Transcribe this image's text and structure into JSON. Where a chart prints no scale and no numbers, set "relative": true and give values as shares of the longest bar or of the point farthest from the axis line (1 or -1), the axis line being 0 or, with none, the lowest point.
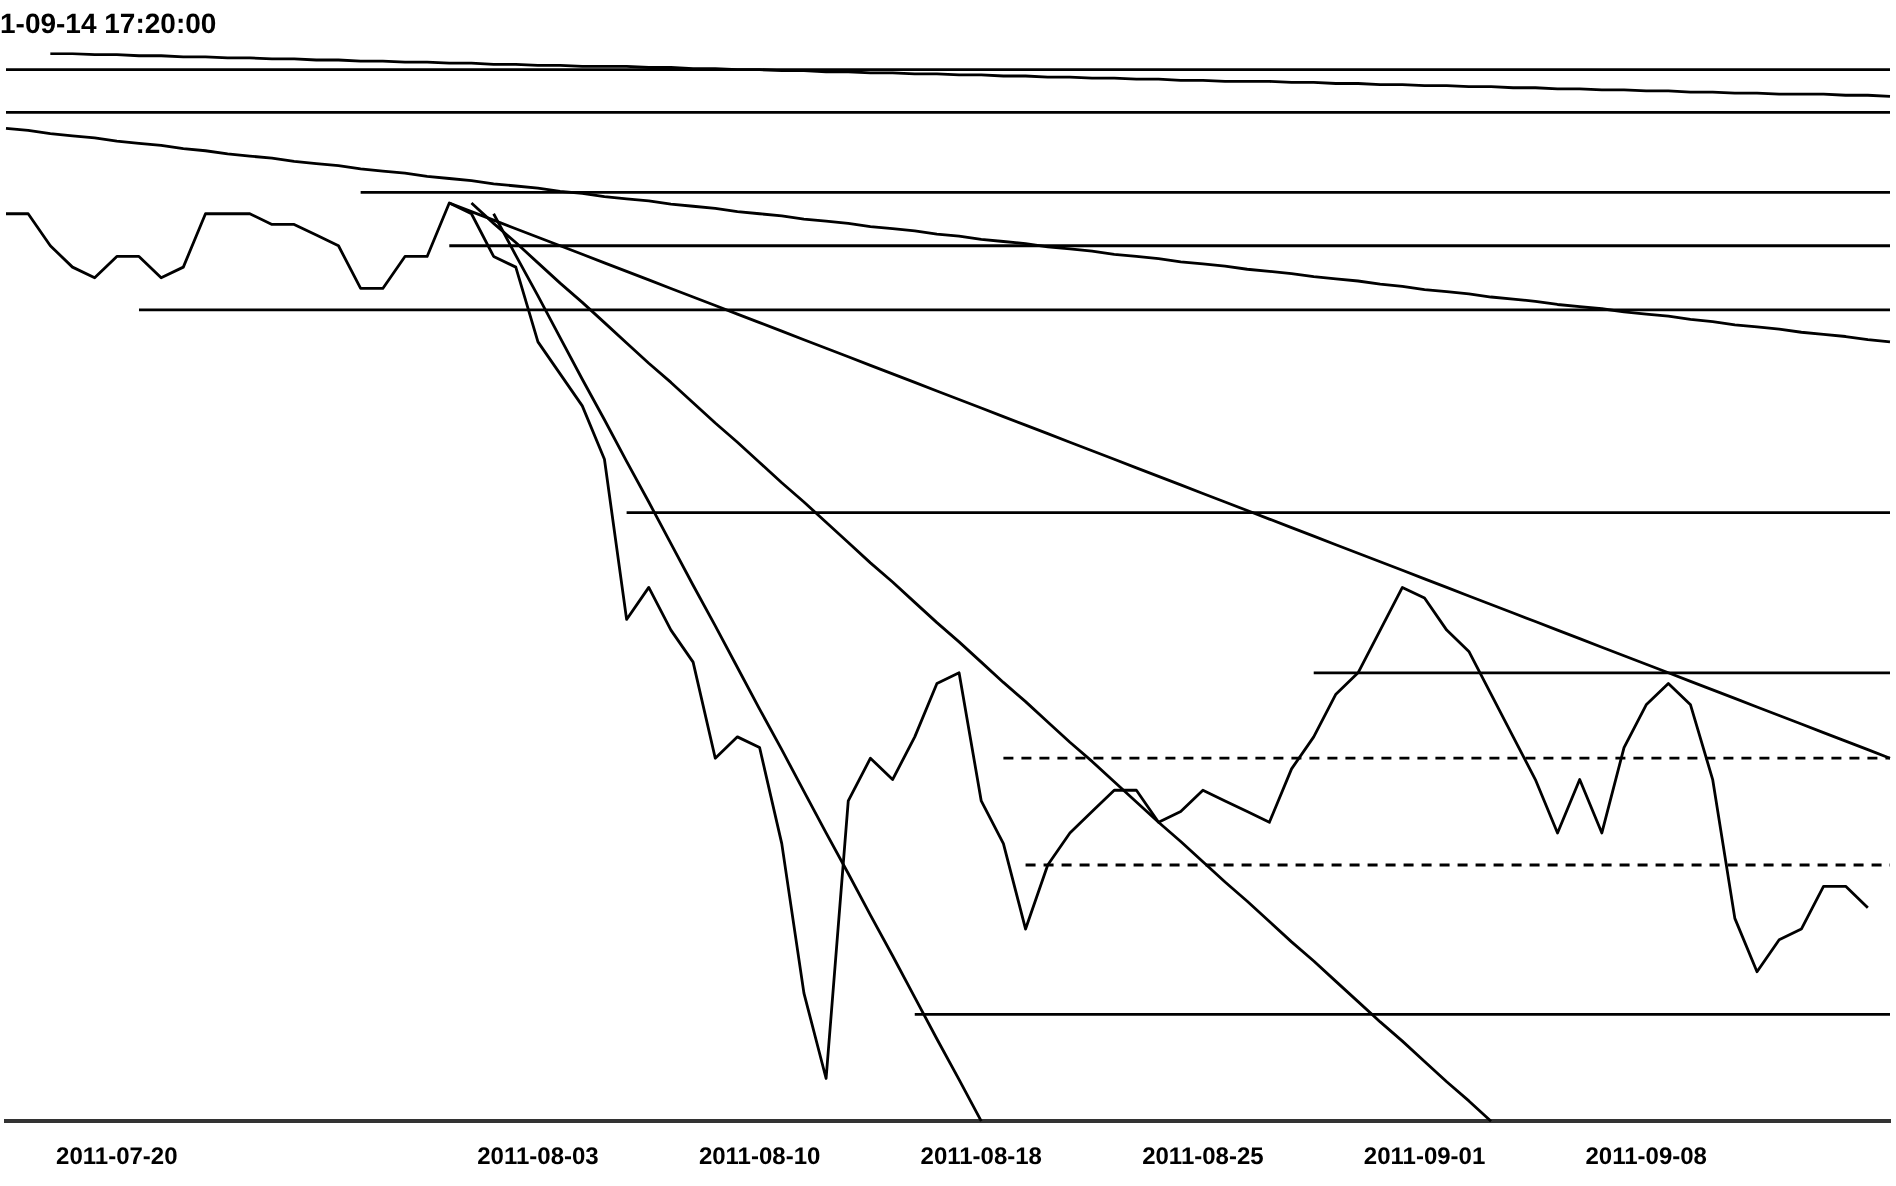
{
  "chart_data": {
    "type": "line",
    "title": "1-09-14 17:20:00",
    "relative": true,
    "legend": false,
    "categories": [
      null,
      null,
      null,
      null,
      null,
      "2011-07-20",
      null,
      null,
      null,
      null,
      null,
      null,
      null,
      null,
      null,
      null,
      null,
      null,
      null,
      null,
      null,
      null,
      null,
      null,
      "2011-08-03",
      null,
      null,
      null,
      null,
      null,
      null,
      null,
      null,
      null,
      "2011-08-10",
      null,
      null,
      null,
      null,
      null,
      null,
      null,
      null,
      null,
      "2011-08-18",
      null,
      null,
      null,
      null,
      null,
      null,
      null,
      null,
      null,
      "2011-08-25",
      null,
      null,
      null,
      null,
      null,
      null,
      null,
      null,
      null,
      "2011-09-01",
      null,
      null,
      null,
      null,
      null,
      null,
      null,
      null,
      null,
      "2011-09-08",
      null,
      null,
      null,
      null,
      null,
      null,
      null,
      null,
      null,
      null,
      null
    ],
    "series": [
      {
        "color": "#000000",
        "values": [
          0.85,
          0.85,
          0.82,
          0.8,
          0.79,
          0.81,
          0.81,
          0.79,
          0.8,
          0.85,
          0.85,
          0.85,
          0.84,
          0.84,
          0.83,
          0.82,
          0.78,
          0.78,
          0.81,
          0.81,
          0.86,
          0.85,
          0.81,
          0.8,
          0.73,
          0.7,
          0.67,
          0.62,
          0.47,
          0.5,
          0.46,
          0.43,
          0.34,
          0.36,
          0.35,
          0.26,
          0.12,
          0.04,
          0.3,
          0.34,
          0.32,
          0.36,
          0.41,
          0.42,
          0.3,
          0.26,
          0.18,
          0.24,
          0.27,
          0.29,
          0.31,
          0.31,
          0.28,
          0.29,
          0.31,
          0.3,
          0.29,
          0.28,
          0.33,
          0.36,
          0.4,
          0.42,
          0.46,
          0.5,
          0.49,
          0.46,
          0.44,
          0.4,
          0.36,
          0.32,
          0.27,
          0.32,
          0.27,
          0.35,
          0.39,
          0.41,
          0.39,
          0.32,
          0.19,
          0.14,
          0.17,
          0.18,
          0.22,
          0.22,
          0.2,
          null
        ]
      },
      {
        "color": "#000000",
        "values": [
          null,
          null,
          1.0,
          1.0,
          0.999,
          0.999,
          0.998,
          0.998,
          0.997,
          0.997,
          0.996,
          0.996,
          0.995,
          0.995,
          0.994,
          0.994,
          0.993,
          0.993,
          0.992,
          0.992,
          0.991,
          0.991,
          0.99,
          0.99,
          0.989,
          0.989,
          0.988,
          0.988,
          0.988,
          0.987,
          0.987,
          0.986,
          0.986,
          0.985,
          0.985,
          0.984,
          0.984,
          0.983,
          0.983,
          0.982,
          0.982,
          0.981,
          0.981,
          0.98,
          0.98,
          0.979,
          0.979,
          0.978,
          0.978,
          0.977,
          0.977,
          0.976,
          0.976,
          0.975,
          0.975,
          0.974,
          0.974,
          0.974,
          0.973,
          0.973,
          0.972,
          0.972,
          0.971,
          0.971,
          0.97,
          0.97,
          0.969,
          0.969,
          0.968,
          0.968,
          0.967,
          0.967,
          0.966,
          0.966,
          0.965,
          0.965,
          0.964,
          0.964,
          0.963,
          0.963,
          0.962,
          0.962,
          0.962,
          0.961,
          0.961,
          0.96
        ]
      },
      {
        "color": "#000000",
        "values": [
          0.985,
          0.985,
          0.985,
          0.985,
          0.985,
          0.985,
          0.985,
          0.985,
          0.985,
          0.985,
          0.985,
          0.985,
          0.985,
          0.985,
          0.985,
          0.985,
          0.985,
          0.985,
          0.985,
          0.985,
          0.985,
          0.985,
          0.985,
          0.985,
          0.985,
          0.985,
          0.985,
          0.985,
          0.985,
          0.985,
          0.985,
          0.985,
          0.985,
          0.985,
          0.985,
          0.985,
          0.985,
          0.985,
          0.985,
          0.985,
          0.985,
          0.985,
          0.985,
          0.985,
          0.985,
          0.985,
          0.985,
          0.985,
          0.985,
          0.985,
          0.985,
          0.985,
          0.985,
          0.985,
          0.985,
          0.985,
          0.985,
          0.985,
          0.985,
          0.985,
          0.985,
          0.985,
          0.985,
          0.985,
          0.985,
          0.985,
          0.985,
          0.985,
          0.985,
          0.985,
          0.985,
          0.985,
          0.985,
          0.985,
          0.985,
          0.985,
          0.985,
          0.985,
          0.985,
          0.985,
          0.985,
          0.985,
          0.985,
          0.985,
          0.985,
          0.985
        ]
      },
      {
        "color": "#000000",
        "values": [
          0.945,
          0.945,
          0.945,
          0.945,
          0.945,
          0.945,
          0.945,
          0.945,
          0.945,
          0.945,
          0.945,
          0.945,
          0.945,
          0.945,
          0.945,
          0.945,
          0.945,
          0.945,
          0.945,
          0.945,
          0.945,
          0.945,
          0.945,
          0.945,
          0.945,
          0.945,
          0.945,
          0.945,
          0.945,
          0.945,
          0.945,
          0.945,
          0.945,
          0.945,
          0.945,
          0.945,
          0.945,
          0.945,
          0.945,
          0.945,
          0.945,
          0.945,
          0.945,
          0.945,
          0.945,
          0.945,
          0.945,
          0.945,
          0.945,
          0.945,
          0.945,
          0.945,
          0.945,
          0.945,
          0.945,
          0.945,
          0.945,
          0.945,
          0.945,
          0.945,
          0.945,
          0.945,
          0.945,
          0.945,
          0.945,
          0.945,
          0.945,
          0.945,
          0.945,
          0.945,
          0.945,
          0.945,
          0.945,
          0.945,
          0.945,
          0.945,
          0.945,
          0.945,
          0.945,
          0.945,
          0.945,
          0.945,
          0.945,
          0.945,
          0.945,
          0.945
        ]
      },
      {
        "color": "#000000",
        "values": [
          0.93,
          0.928,
          0.925,
          0.923,
          0.921,
          0.918,
          0.916,
          0.914,
          0.911,
          0.909,
          0.906,
          0.904,
          0.902,
          0.899,
          0.897,
          0.895,
          0.892,
          0.89,
          0.888,
          0.885,
          0.883,
          0.881,
          0.878,
          0.876,
          0.874,
          0.871,
          0.869,
          0.866,
          0.864,
          0.862,
          0.859,
          0.857,
          0.855,
          0.852,
          0.85,
          0.848,
          0.845,
          0.843,
          0.841,
          0.838,
          0.836,
          0.834,
          0.831,
          0.829,
          0.826,
          0.824,
          0.822,
          0.819,
          0.817,
          0.815,
          0.812,
          0.81,
          0.808,
          0.805,
          0.803,
          0.801,
          0.798,
          0.796,
          0.794,
          0.791,
          0.789,
          0.787,
          0.784,
          0.782,
          0.779,
          0.777,
          0.775,
          0.772,
          0.77,
          0.768,
          0.765,
          0.763,
          0.761,
          0.758,
          0.756,
          0.754,
          0.751,
          0.749,
          0.746,
          0.744,
          0.742,
          0.739,
          0.737,
          0.735,
          0.732,
          0.73
        ]
      },
      {
        "color": "#000000",
        "values": [
          null,
          null,
          null,
          null,
          null,
          null,
          null,
          null,
          null,
          null,
          null,
          null,
          null,
          null,
          null,
          null,
          0.87,
          0.87,
          0.87,
          0.87,
          0.87,
          0.87,
          0.87,
          0.87,
          0.87,
          0.87,
          0.87,
          0.87,
          0.87,
          0.87,
          0.87,
          0.87,
          0.87,
          0.87,
          0.87,
          0.87,
          0.87,
          0.87,
          0.87,
          0.87,
          0.87,
          0.87,
          0.87,
          0.87,
          0.87,
          0.87,
          0.87,
          0.87,
          0.87,
          0.87,
          0.87,
          0.87,
          0.87,
          0.87,
          0.87,
          0.87,
          0.87,
          0.87,
          0.87,
          0.87,
          0.87,
          0.87,
          0.87,
          0.87,
          0.87,
          0.87,
          0.87,
          0.87,
          0.87,
          0.87,
          0.87,
          0.87,
          0.87,
          0.87,
          0.87,
          0.87,
          0.87,
          0.87,
          0.87,
          0.87,
          0.87,
          0.87,
          0.87,
          0.87,
          0.87,
          0.87
        ]
      },
      {
        "color": "#000000",
        "values": [
          null,
          null,
          null,
          null,
          null,
          null,
          null,
          null,
          null,
          null,
          null,
          null,
          null,
          null,
          null,
          null,
          null,
          null,
          null,
          null,
          0.82,
          0.82,
          0.82,
          0.82,
          0.82,
          0.82,
          0.82,
          0.82,
          0.82,
          0.82,
          0.82,
          0.82,
          0.82,
          0.82,
          0.82,
          0.82,
          0.82,
          0.82,
          0.82,
          0.82,
          0.82,
          0.82,
          0.82,
          0.82,
          0.82,
          0.82,
          0.82,
          0.82,
          0.82,
          0.82,
          0.82,
          0.82,
          0.82,
          0.82,
          0.82,
          0.82,
          0.82,
          0.82,
          0.82,
          0.82,
          0.82,
          0.82,
          0.82,
          0.82,
          0.82,
          0.82,
          0.82,
          0.82,
          0.82,
          0.82,
          0.82,
          0.82,
          0.82,
          0.82,
          0.82,
          0.82,
          0.82,
          0.82,
          0.82,
          0.82,
          0.82,
          0.82,
          0.82,
          0.82,
          0.82,
          0.82
        ]
      },
      {
        "color": "#000000",
        "values": [
          null,
          null,
          null,
          null,
          null,
          null,
          0.76,
          0.76,
          0.76,
          0.76,
          0.76,
          0.76,
          0.76,
          0.76,
          0.76,
          0.76,
          0.76,
          0.76,
          0.76,
          0.76,
          0.76,
          0.76,
          0.76,
          0.76,
          0.76,
          0.76,
          0.76,
          0.76,
          0.76,
          0.76,
          0.76,
          0.76,
          0.76,
          0.76,
          0.76,
          0.76,
          0.76,
          0.76,
          0.76,
          0.76,
          0.76,
          0.76,
          0.76,
          0.76,
          0.76,
          0.76,
          0.76,
          0.76,
          0.76,
          0.76,
          0.76,
          0.76,
          0.76,
          0.76,
          0.76,
          0.76,
          0.76,
          0.76,
          0.76,
          0.76,
          0.76,
          0.76,
          0.76,
          0.76,
          0.76,
          0.76,
          0.76,
          0.76,
          0.76,
          0.76,
          0.76,
          0.76,
          0.76,
          0.76,
          0.76,
          0.76,
          0.76,
          0.76,
          0.76,
          0.76,
          0.76,
          0.76,
          0.76,
          0.76,
          0.76,
          0.76
        ]
      },
      {
        "color": "#000000",
        "values": [
          null,
          null,
          null,
          null,
          null,
          null,
          null,
          null,
          null,
          null,
          null,
          null,
          null,
          null,
          null,
          null,
          null,
          null,
          null,
          null,
          0.86,
          0.852,
          0.844,
          0.836,
          0.828,
          0.82,
          0.812,
          0.804,
          0.796,
          0.788,
          0.78,
          0.772,
          0.764,
          0.756,
          0.748,
          0.74,
          0.732,
          0.724,
          0.716,
          0.708,
          0.7,
          0.692,
          0.684,
          0.676,
          0.668,
          0.66,
          0.652,
          0.644,
          0.636,
          0.628,
          0.62,
          0.612,
          0.604,
          0.596,
          0.588,
          0.58,
          0.572,
          0.564,
          0.556,
          0.548,
          0.54,
          0.532,
          0.524,
          0.516,
          0.508,
          0.5,
          0.492,
          0.484,
          0.476,
          0.468,
          0.46,
          0.452,
          0.444,
          0.436,
          0.428,
          0.42,
          0.412,
          0.404,
          0.396,
          0.388,
          0.38,
          0.372,
          0.364,
          0.356,
          0.348,
          0.34
        ]
      },
      {
        "color": "#000000",
        "values": [
          null,
          null,
          null,
          null,
          null,
          null,
          null,
          null,
          null,
          null,
          null,
          null,
          null,
          null,
          null,
          null,
          null,
          null,
          null,
          null,
          null,
          0.86,
          0.841,
          0.823,
          0.804,
          0.785,
          0.767,
          0.748,
          0.729,
          0.71,
          0.692,
          0.673,
          0.654,
          0.636,
          0.617,
          0.598,
          0.58,
          0.561,
          0.542,
          0.523,
          0.505,
          0.486,
          0.467,
          0.449,
          0.43,
          0.411,
          0.393,
          0.374,
          0.355,
          0.337,
          0.318,
          0.299,
          0.28,
          0.262,
          0.243,
          0.224,
          0.206,
          0.187,
          0.168,
          0.15,
          0.131,
          0.112,
          0.093,
          0.075,
          0.056,
          0.037,
          0.019,
          0.0,
          null,
          null,
          null,
          null,
          null,
          null,
          null,
          null,
          null,
          null,
          null,
          null,
          null,
          null,
          null,
          null,
          null,
          null
        ]
      },
      {
        "color": "#000000",
        "values": [
          null,
          null,
          null,
          null,
          null,
          null,
          null,
          null,
          null,
          null,
          null,
          null,
          null,
          null,
          null,
          null,
          null,
          null,
          null,
          null,
          null,
          null,
          0.85,
          0.811,
          0.773,
          0.734,
          0.695,
          0.657,
          0.618,
          0.58,
          0.541,
          0.502,
          0.464,
          0.425,
          0.386,
          0.348,
          0.309,
          0.27,
          0.232,
          0.193,
          0.155,
          0.116,
          0.077,
          0.039,
          0.0,
          null,
          null,
          null,
          null,
          null,
          null,
          null,
          null,
          null,
          null,
          null,
          null,
          null,
          null,
          null,
          null,
          null,
          null,
          null,
          null,
          null,
          null,
          null,
          null,
          null,
          null,
          null,
          null,
          null,
          null,
          null,
          null,
          null,
          null,
          null,
          null,
          null,
          null,
          null,
          null,
          null
        ]
      },
      {
        "color": "#000000",
        "values": [
          null,
          null,
          null,
          null,
          null,
          null,
          null,
          null,
          null,
          null,
          null,
          null,
          null,
          null,
          null,
          null,
          null,
          null,
          null,
          null,
          null,
          null,
          null,
          null,
          null,
          null,
          null,
          null,
          0.57,
          0.57,
          0.57,
          0.57,
          0.57,
          0.57,
          0.57,
          0.57,
          0.57,
          0.57,
          0.57,
          0.57,
          0.57,
          0.57,
          0.57,
          0.57,
          0.57,
          0.57,
          0.57,
          0.57,
          0.57,
          0.57,
          0.57,
          0.57,
          0.57,
          0.57,
          0.57,
          0.57,
          0.57,
          0.57,
          0.57,
          0.57,
          0.57,
          0.57,
          0.57,
          0.57,
          0.57,
          0.57,
          0.57,
          0.57,
          0.57,
          0.57,
          0.57,
          0.57,
          0.57,
          0.57,
          0.57,
          0.57,
          0.57,
          0.57,
          0.57,
          0.57,
          0.57,
          0.57,
          0.57,
          0.57,
          0.57,
          0.57
        ]
      },
      {
        "color": "#000000",
        "values": [
          null,
          null,
          null,
          null,
          null,
          null,
          null,
          null,
          null,
          null,
          null,
          null,
          null,
          null,
          null,
          null,
          null,
          null,
          null,
          null,
          null,
          null,
          null,
          null,
          null,
          null,
          null,
          null,
          null,
          null,
          null,
          null,
          null,
          null,
          null,
          null,
          null,
          null,
          null,
          null,
          null,
          null,
          null,
          null,
          null,
          null,
          null,
          null,
          null,
          null,
          null,
          null,
          null,
          null,
          null,
          null,
          null,
          null,
          null,
          0.42,
          0.42,
          0.42,
          0.42,
          0.42,
          0.42,
          0.42,
          0.42,
          0.42,
          0.42,
          0.42,
          0.42,
          0.42,
          0.42,
          0.42,
          0.42,
          0.42,
          0.42,
          0.42,
          0.42,
          0.42,
          0.42,
          0.42,
          0.42,
          0.42,
          0.42,
          0.42
        ]
      },
      {
        "color": "#000000",
        "line_style": "dashed",
        "values": [
          null,
          null,
          null,
          null,
          null,
          null,
          null,
          null,
          null,
          null,
          null,
          null,
          null,
          null,
          null,
          null,
          null,
          null,
          null,
          null,
          null,
          null,
          null,
          null,
          null,
          null,
          null,
          null,
          null,
          null,
          null,
          null,
          null,
          null,
          null,
          null,
          null,
          null,
          null,
          null,
          null,
          null,
          null,
          null,
          null,
          0.34,
          0.34,
          0.34,
          0.34,
          0.34,
          0.34,
          0.34,
          0.34,
          0.34,
          0.34,
          0.34,
          0.34,
          0.34,
          0.34,
          0.34,
          0.34,
          0.34,
          0.34,
          0.34,
          0.34,
          0.34,
          0.34,
          0.34,
          0.34,
          0.34,
          0.34,
          0.34,
          0.34,
          0.34,
          0.34,
          0.34,
          0.34,
          0.34,
          0.34,
          0.34,
          0.34,
          0.34,
          0.34,
          0.34,
          0.34,
          0.34
        ]
      },
      {
        "color": "#000000",
        "line_style": "dashed",
        "values": [
          null,
          null,
          null,
          null,
          null,
          null,
          null,
          null,
          null,
          null,
          null,
          null,
          null,
          null,
          null,
          null,
          null,
          null,
          null,
          null,
          null,
          null,
          null,
          null,
          null,
          null,
          null,
          null,
          null,
          null,
          null,
          null,
          null,
          null,
          null,
          null,
          null,
          null,
          null,
          null,
          null,
          null,
          null,
          null,
          null,
          null,
          0.24,
          0.24,
          0.24,
          0.24,
          0.24,
          0.24,
          0.24,
          0.24,
          0.24,
          0.24,
          0.24,
          0.24,
          0.24,
          0.24,
          0.24,
          0.24,
          0.24,
          0.24,
          0.24,
          0.24,
          0.24,
          0.24,
          0.24,
          0.24,
          0.24,
          0.24,
          0.24,
          0.24,
          0.24,
          0.24,
          0.24,
          0.24,
          0.24,
          0.24,
          0.24,
          0.24,
          0.24,
          0.24,
          0.24,
          0.24
        ]
      },
      {
        "color": "#000000",
        "values": [
          null,
          null,
          null,
          null,
          null,
          null,
          null,
          null,
          null,
          null,
          null,
          null,
          null,
          null,
          null,
          null,
          null,
          null,
          null,
          null,
          null,
          null,
          null,
          null,
          null,
          null,
          null,
          null,
          null,
          null,
          null,
          null,
          null,
          null,
          null,
          null,
          null,
          null,
          null,
          null,
          null,
          0.1,
          0.1,
          0.1,
          0.1,
          0.1,
          0.1,
          0.1,
          0.1,
          0.1,
          0.1,
          0.1,
          0.1,
          0.1,
          0.1,
          0.1,
          0.1,
          0.1,
          0.1,
          0.1,
          0.1,
          0.1,
          0.1,
          0.1,
          0.1,
          0.1,
          0.1,
          0.1,
          0.1,
          0.1,
          0.1,
          0.1,
          0.1,
          0.1,
          0.1,
          0.1,
          0.1,
          0.1,
          0.1,
          0.1,
          0.1,
          0.1,
          0.1,
          0.1,
          0.1,
          0.1
        ]
      }
    ]
  }
}
